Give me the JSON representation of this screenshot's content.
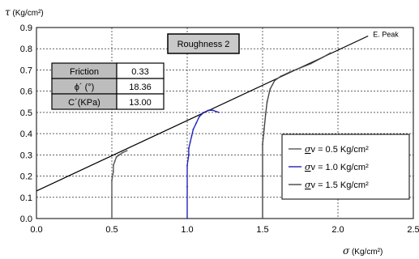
{
  "chart_data": {
    "type": "line",
    "xlabel_symbol": "σ",
    "xlabel_unit": " (Kg/cm²)",
    "ylabel_symbol": "τ",
    "ylabel_unit": " (Kg/cm²)",
    "xlim": [
      0,
      2.5
    ],
    "ylim": [
      0,
      0.9
    ],
    "xticks": [
      "0.0",
      "0.5",
      "1.0",
      "1.5",
      "2.0",
      "2.5"
    ],
    "yticks": [
      "0.0",
      "0.1",
      "0.2",
      "0.3",
      "0.4",
      "0.5",
      "0.6",
      "0.7",
      "0.8",
      "0.9"
    ],
    "grid": true,
    "annotation_box": "Roughness 2",
    "envelope": {
      "name": "E. Peak",
      "points": [
        [
          0,
          0.13
        ],
        [
          2.2,
          0.86
        ]
      ],
      "color": "#000000"
    },
    "parameters_table": [
      {
        "label": "Friction",
        "value": "0.33"
      },
      {
        "label": "ϕ´ (°)",
        "value": "18.36"
      },
      {
        "label": "C´(KPa)",
        "value": "13.00"
      }
    ],
    "legend_position": "right",
    "series": [
      {
        "name": "σv = 0.5 Kg/cm²",
        "legend_symbol": "σ",
        "legend_text": "v = 0.5 Kg/cm²",
        "color": "#555555",
        "x": [
          0.5,
          0.5,
          0.5,
          0.51,
          0.51,
          0.52,
          0.53,
          0.55,
          0.57,
          0.6
        ],
        "y": [
          0.0,
          0.1,
          0.18,
          0.22,
          0.25,
          0.27,
          0.29,
          0.3,
          0.31,
          0.32
        ]
      },
      {
        "name": "σv = 1.0 Kg/cm²",
        "legend_symbol": "σ",
        "legend_text": "v = 1.0 Kg/cm²",
        "color": "#2222bb",
        "x": [
          1.0,
          1.0,
          1.0,
          1.01,
          1.01,
          1.02,
          1.03,
          1.04,
          1.06,
          1.08,
          1.11,
          1.14,
          1.17,
          1.21
        ],
        "y": [
          0.0,
          0.15,
          0.25,
          0.3,
          0.33,
          0.36,
          0.39,
          0.42,
          0.45,
          0.48,
          0.5,
          0.51,
          0.51,
          0.5
        ]
      },
      {
        "name": "σv = 1.5 Kg/cm²",
        "legend_symbol": "σ",
        "legend_text": "v = 1.5  Kg/cm²",
        "color": "#444444",
        "x": [
          1.5,
          1.5,
          1.5,
          1.51,
          1.52,
          1.53,
          1.55,
          1.58,
          1.62,
          1.68,
          1.75,
          1.82,
          1.9,
          1.95
        ],
        "y": [
          0.0,
          0.2,
          0.35,
          0.42,
          0.49,
          0.55,
          0.61,
          0.65,
          0.67,
          0.69,
          0.71,
          0.73,
          0.76,
          0.78
        ]
      }
    ]
  }
}
